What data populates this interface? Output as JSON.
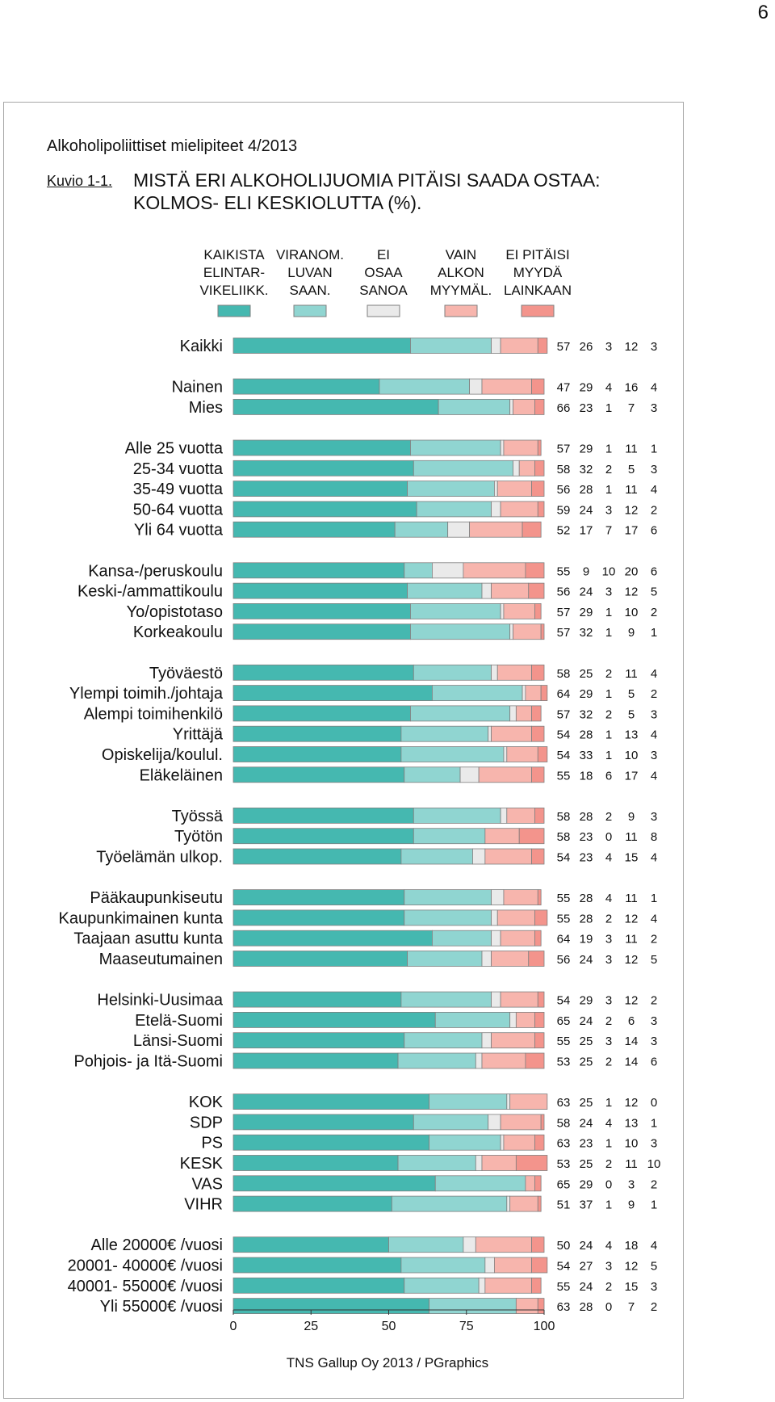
{
  "page_number": "6",
  "report_title": "Alkoholipoliittiset mielipiteet 4/2013",
  "figure_id": "Kuvio 1-1.",
  "figure_title_line1": "MISTÄ ERI ALKOHOLIJUOMIA PITÄISI SAADA OSTAA:",
  "figure_title_line2": "KOLMOS- ELI KESKIOLUTTA (%).",
  "footer": "TNS Gallup Oy 2013 / PGraphics",
  "colors": {
    "kaikista": "#45b8b0",
    "viranom": "#90d5d1",
    "ei_osaa": "#eaeaea",
    "vain_alkon": "#f7b5ad",
    "ei_pitaisi": "#f3948c",
    "edge": "#7f7f7f"
  },
  "chart_data": {
    "type": "bar",
    "orientation": "horizontal",
    "stacked": true,
    "xlim": [
      0,
      100
    ],
    "xticks": [
      "0",
      "25",
      "50",
      "75",
      "100"
    ],
    "legend": [
      {
        "lines": [
          "KAIKISTA",
          "ELINTAR-",
          "VIKELIIKK."
        ],
        "color_key": "kaikista"
      },
      {
        "lines": [
          "VIRANOM.",
          "LUVAN",
          "SAAN."
        ],
        "color_key": "viranom"
      },
      {
        "lines": [
          "EI",
          "OSAA",
          "SANOA"
        ],
        "color_key": "ei_osaa"
      },
      {
        "lines": [
          "VAIN",
          "ALKON",
          "MYYMÄL."
        ],
        "color_key": "vain_alkon"
      },
      {
        "lines": [
          "EI PITÄISI",
          "MYYDÄ",
          "LAINKAAN"
        ],
        "color_key": "ei_pitaisi"
      }
    ],
    "groups": [
      [
        {
          "label": "Kaikki",
          "values": [
            57,
            26,
            3,
            12,
            3
          ]
        }
      ],
      [
        {
          "label": "Nainen",
          "values": [
            47,
            29,
            4,
            16,
            4
          ]
        },
        {
          "label": "Mies",
          "values": [
            66,
            23,
            1,
            7,
            3
          ]
        }
      ],
      [
        {
          "label": "Alle 25 vuotta",
          "values": [
            57,
            29,
            1,
            11,
            1
          ]
        },
        {
          "label": "25-34 vuotta",
          "values": [
            58,
            32,
            2,
            5,
            3
          ]
        },
        {
          "label": "35-49 vuotta",
          "values": [
            56,
            28,
            1,
            11,
            4
          ]
        },
        {
          "label": "50-64 vuotta",
          "values": [
            59,
            24,
            3,
            12,
            2
          ]
        },
        {
          "label": "Yli 64 vuotta",
          "values": [
            52,
            17,
            7,
            17,
            6
          ]
        }
      ],
      [
        {
          "label": "Kansa-/peruskoulu",
          "values": [
            55,
            9,
            10,
            20,
            6
          ]
        },
        {
          "label": "Keski-/ammattikoulu",
          "values": [
            56,
            24,
            3,
            12,
            5
          ]
        },
        {
          "label": "Yo/opistotaso",
          "values": [
            57,
            29,
            1,
            10,
            2
          ]
        },
        {
          "label": "Korkeakoulu",
          "values": [
            57,
            32,
            1,
            9,
            1
          ]
        }
      ],
      [
        {
          "label": "Työväestö",
          "values": [
            58,
            25,
            2,
            11,
            4
          ]
        },
        {
          "label": "Ylempi toimih./johtaja",
          "values": [
            64,
            29,
            1,
            5,
            2
          ]
        },
        {
          "label": "Alempi toimihenkilö",
          "values": [
            57,
            32,
            2,
            5,
            3
          ]
        },
        {
          "label": "Yrittäjä",
          "values": [
            54,
            28,
            1,
            13,
            4
          ]
        },
        {
          "label": "Opiskelija/koulul.",
          "values": [
            54,
            33,
            1,
            10,
            3
          ]
        },
        {
          "label": "Eläkeläinen",
          "values": [
            55,
            18,
            6,
            17,
            4
          ]
        }
      ],
      [
        {
          "label": "Työssä",
          "values": [
            58,
            28,
            2,
            9,
            3
          ]
        },
        {
          "label": "Työtön",
          "values": [
            58,
            23,
            0,
            11,
            8
          ]
        },
        {
          "label": "Työelämän ulkop.",
          "values": [
            54,
            23,
            4,
            15,
            4
          ]
        }
      ],
      [
        {
          "label": "Pääkaupunkiseutu",
          "values": [
            55,
            28,
            4,
            11,
            1
          ]
        },
        {
          "label": "Kaupunkimainen kunta",
          "values": [
            55,
            28,
            2,
            12,
            4
          ]
        },
        {
          "label": "Taajaan asuttu kunta",
          "values": [
            64,
            19,
            3,
            11,
            2
          ]
        },
        {
          "label": "Maaseutumainen",
          "values": [
            56,
            24,
            3,
            12,
            5
          ]
        }
      ],
      [
        {
          "label": "Helsinki-Uusimaa",
          "values": [
            54,
            29,
            3,
            12,
            2
          ]
        },
        {
          "label": "Etelä-Suomi",
          "values": [
            65,
            24,
            2,
            6,
            3
          ]
        },
        {
          "label": "Länsi-Suomi",
          "values": [
            55,
            25,
            3,
            14,
            3
          ]
        },
        {
          "label": "Pohjois- ja Itä-Suomi",
          "values": [
            53,
            25,
            2,
            14,
            6
          ]
        }
      ],
      [
        {
          "label": "KOK",
          "values": [
            63,
            25,
            1,
            12,
            0
          ]
        },
        {
          "label": "SDP",
          "values": [
            58,
            24,
            4,
            13,
            1
          ]
        },
        {
          "label": "PS",
          "values": [
            63,
            23,
            1,
            10,
            3
          ]
        },
        {
          "label": "KESK",
          "values": [
            53,
            25,
            2,
            11,
            10
          ]
        },
        {
          "label": "VAS",
          "values": [
            65,
            29,
            0,
            3,
            2
          ]
        },
        {
          "label": "VIHR",
          "values": [
            51,
            37,
            1,
            9,
            1
          ]
        }
      ],
      [
        {
          "label": "Alle 20000€ /vuosi",
          "values": [
            50,
            24,
            4,
            18,
            4
          ]
        },
        {
          "label": "20001- 40000€ /vuosi",
          "values": [
            54,
            27,
            3,
            12,
            5
          ]
        },
        {
          "label": "40001- 55000€ /vuosi",
          "values": [
            55,
            24,
            2,
            15,
            3
          ]
        },
        {
          "label": "Yli 55000€ /vuosi",
          "values": [
            63,
            28,
            0,
            7,
            2
          ]
        }
      ]
    ]
  }
}
